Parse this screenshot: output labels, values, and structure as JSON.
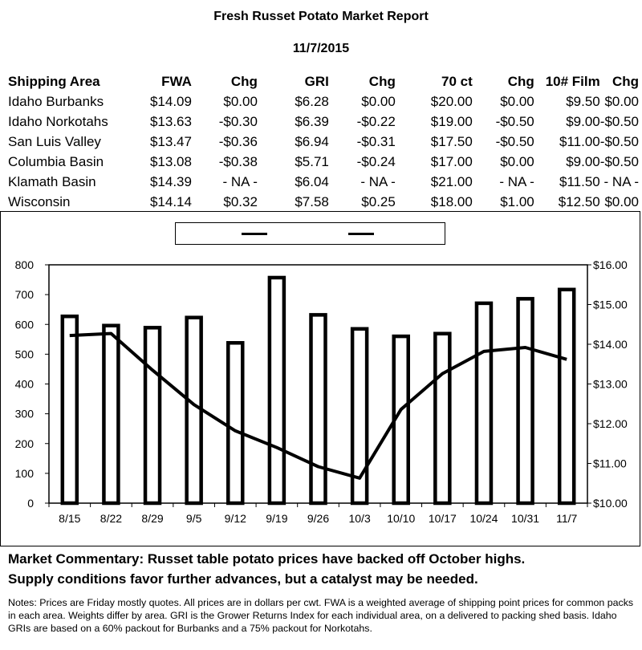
{
  "report": {
    "title": "Fresh Russet Potato Market Report",
    "date": "11/7/2015"
  },
  "table": {
    "headers": [
      "Shipping Area",
      "FWA",
      "Chg",
      "GRI",
      "Chg",
      "70 ct",
      "Chg",
      "10# Film",
      "Chg"
    ],
    "rows": [
      [
        "Idaho Burbanks",
        "$14.09",
        "$0.00",
        "$6.28",
        "$0.00",
        "$20.00",
        "$0.00",
        "$9.50",
        "$0.00"
      ],
      [
        "Idaho Norkotahs",
        "$13.63",
        "-$0.30",
        "$6.39",
        "-$0.22",
        "$19.00",
        "-$0.50",
        "$9.00",
        "-$0.50"
      ],
      [
        "San Luis Valley",
        "$13.47",
        "-$0.36",
        "$6.94",
        "-$0.31",
        "$17.50",
        "-$0.50",
        "$11.00",
        "-$0.50"
      ],
      [
        "Columbia Basin",
        "$13.08",
        "-$0.38",
        "$5.71",
        "-$0.24",
        "$17.00",
        "$0.00",
        "$9.00",
        "-$0.50"
      ],
      [
        "Klamath Basin",
        "$14.39",
        "- NA -",
        "$6.04",
        "- NA -",
        "$21.00",
        "- NA -",
        "$11.50",
        "- NA -"
      ],
      [
        "Wisconsin",
        "$14.14",
        "$0.32",
        "$7.58",
        "$0.25",
        "$18.00",
        "$1.00",
        "$12.50",
        "$0.00"
      ]
    ]
  },
  "chart_data": {
    "type": "bar",
    "categories": [
      "8/15",
      "8/22",
      "8/29",
      "9/5",
      "9/12",
      "9/19",
      "9/26",
      "10/3",
      "10/10",
      "10/17",
      "10/24",
      "10/31",
      "11/7"
    ],
    "series": [
      {
        "type": "bar",
        "axis": "left",
        "values": [
          627,
          596,
          589,
          623,
          538,
          757,
          632,
          585,
          560,
          569,
          671,
          686,
          717
        ]
      },
      {
        "type": "line",
        "axis": "right",
        "values": [
          14.22,
          14.27,
          13.35,
          12.48,
          11.82,
          11.4,
          10.92,
          10.63,
          12.36,
          13.26,
          13.82,
          13.92,
          13.62
        ]
      }
    ],
    "ylim_left": [
      0,
      800
    ],
    "yticks_left": [
      0,
      100,
      200,
      300,
      400,
      500,
      600,
      700,
      800
    ],
    "ylim_right": [
      10,
      16
    ],
    "yticks_right": [
      "$10.00",
      "$11.00",
      "$12.00",
      "$13.00",
      "$14.00",
      "$15.00",
      "$16.00"
    ],
    "legend_position": "top",
    "grid": false,
    "bar_fill": "#ffffff",
    "line_color": "#000000"
  },
  "commentary": [
    "Market Commentary: Russet table potato prices have backed off October highs.",
    "Supply conditions favor further advances, but a catalyst may be needed."
  ],
  "notes": "Notes: Prices are Friday mostly quotes. All prices are in dollars per cwt. FWA is a weighted average of shipping point prices for  common packs in each area. Weights differ by area. GRI is the Grower Returns Index for each individual area, on a delivered to packing shed basis. Idaho GRIs are based on a 60% packout for Burbanks and a 75% packout for Norkotahs."
}
